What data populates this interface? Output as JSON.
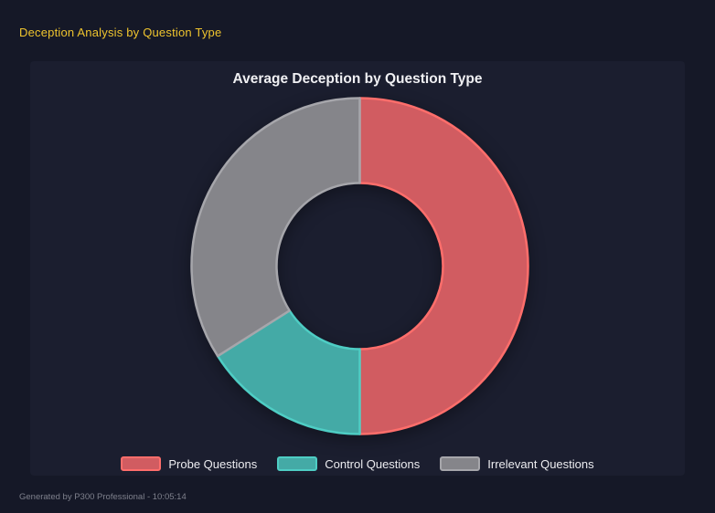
{
  "page": {
    "header": "Deception Analysis by Question Type",
    "footer": "Generated by P300 Professional - 10:05:14"
  },
  "colors": {
    "page_bg": "#151827",
    "panel_bg": "#1b1e2f",
    "header_text": "#efc42e",
    "title_text": "#f0f0f3",
    "legend_text": "#ececf0",
    "footer_text": "#7e808c"
  },
  "chart_data": {
    "type": "pie",
    "subtype": "doughnut",
    "title": "Average Deception by Question Type",
    "cutout_ratio": 0.49,
    "start_angle_deg": 0,
    "rotation": "clockwise-from-top",
    "legend_position": "bottom",
    "segments": [
      {
        "label": "Probe Questions",
        "percent": 50,
        "fill": "#d15c61",
        "border": "#ff6e6b"
      },
      {
        "label": "Control Questions",
        "percent": 16,
        "fill": "#44aaa6",
        "border": "#4ecdc4"
      },
      {
        "label": "Irrelevant Questions",
        "percent": 34,
        "fill": "#85858a",
        "border": "#a6a6ab"
      }
    ]
  }
}
